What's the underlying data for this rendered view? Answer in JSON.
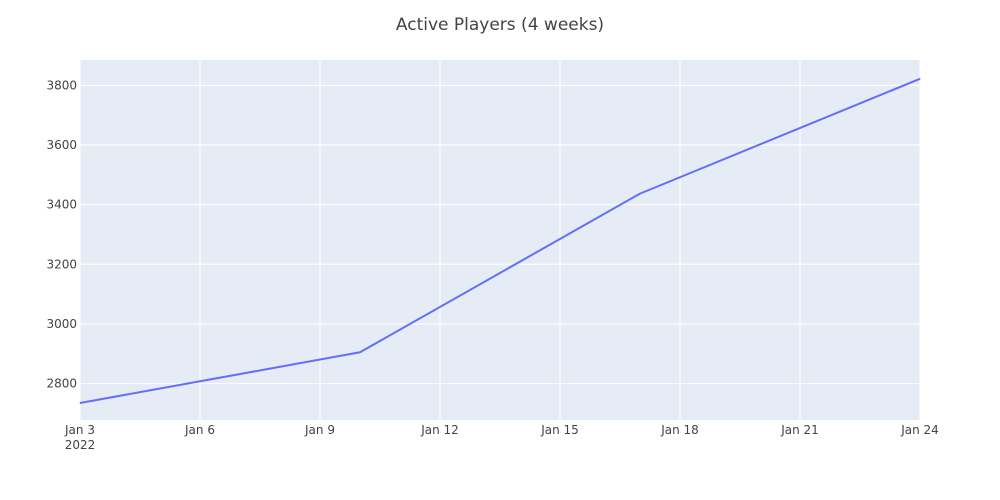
{
  "chart_data": {
    "type": "line",
    "title": "Active Players (4 weeks)",
    "xlabel": "",
    "ylabel": "",
    "x_type": "date",
    "xlim": [
      "2022-01-03",
      "2022-01-24"
    ],
    "ylim": [
      2678,
      3885
    ],
    "x_ticks": [
      {
        "value": "2022-01-03",
        "label": "Jan 3",
        "sublabel": "2022"
      },
      {
        "value": "2022-01-06",
        "label": "Jan 6"
      },
      {
        "value": "2022-01-09",
        "label": "Jan 9"
      },
      {
        "value": "2022-01-12",
        "label": "Jan 12"
      },
      {
        "value": "2022-01-15",
        "label": "Jan 15"
      },
      {
        "value": "2022-01-18",
        "label": "Jan 18"
      },
      {
        "value": "2022-01-21",
        "label": "Jan 21"
      },
      {
        "value": "2022-01-24",
        "label": "Jan 24"
      }
    ],
    "y_ticks": [
      2800,
      3000,
      3200,
      3400,
      3600,
      3800
    ],
    "grid": true,
    "series": [
      {
        "x": [
          "2022-01-03",
          "2022-01-10",
          "2022-01-17",
          "2022-01-24"
        ],
        "values": [
          2735,
          2905,
          3437,
          3822
        ]
      }
    ]
  },
  "colors": {
    "plot_bg": "#e5ecf6",
    "grid": "#ffffff",
    "line": "#636efa",
    "text": "#444444"
  }
}
